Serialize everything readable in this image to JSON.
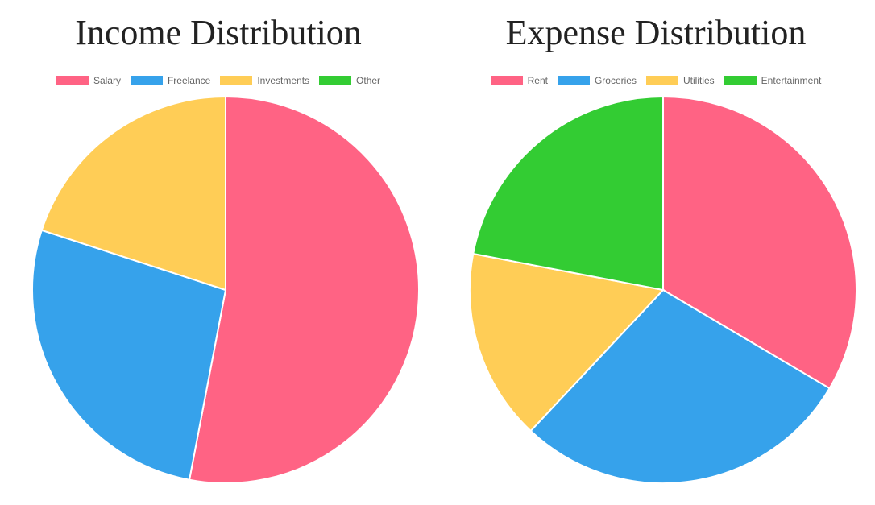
{
  "chart_data": [
    {
      "type": "pie",
      "title": "Income Distribution",
      "labels": [
        "Salary",
        "Freelance",
        "Investments",
        "Other"
      ],
      "values": [
        53,
        27,
        20,
        0
      ],
      "colors": [
        "#ff6384",
        "#36a2eb",
        "#ffcd56",
        "#33cc33"
      ],
      "hidden": [
        false,
        false,
        false,
        true
      ],
      "legend_position": "top"
    },
    {
      "type": "pie",
      "title": "Expense Distribution",
      "labels": [
        "Rent",
        "Groceries",
        "Utilities",
        "Entertainment"
      ],
      "values": [
        33.5,
        28.5,
        16,
        22
      ],
      "colors": [
        "#ff6384",
        "#36a2eb",
        "#ffcd56",
        "#33cc33"
      ],
      "hidden": [
        false,
        false,
        false,
        false
      ],
      "legend_position": "top"
    }
  ]
}
